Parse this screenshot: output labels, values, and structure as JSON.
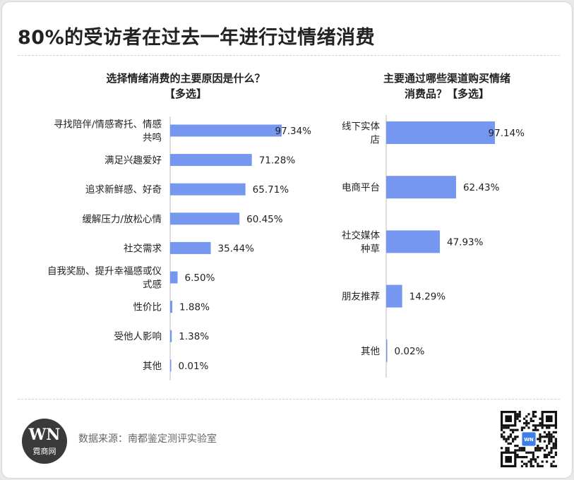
{
  "header": {
    "title": "80%的受访者在过去一年进行过情绪消费"
  },
  "chart_data": [
    {
      "type": "bar",
      "orientation": "horizontal",
      "title": "选择情绪消费的主要原因是什么？【多选】",
      "title_lines": [
        "选择情绪消费的主要原因是什么？",
        "【多选】"
      ],
      "categories": [
        "寻找陪伴/情感寄托、情感共鸣",
        "满足兴趣爱好",
        "追求新鲜感、好奇",
        "缓解压力/放松心情",
        "社交需求",
        "自我奖励、提升幸福感或仪式感",
        "性价比",
        "受他人影响",
        "其他"
      ],
      "category_lines": [
        [
          "寻找陪伴/情感寄托、情感",
          "共鸣"
        ],
        [
          "满足兴趣爱好"
        ],
        [
          "追求新鲜感、好奇"
        ],
        [
          "缓解压力/放松心情"
        ],
        [
          "社交需求"
        ],
        [
          "自我奖励、提升幸福感或仪",
          "式感"
        ],
        [
          "性价比"
        ],
        [
          "受他人影响"
        ],
        [
          "其他"
        ]
      ],
      "values": [
        97.34,
        71.28,
        65.71,
        60.45,
        35.44,
        6.5,
        1.88,
        1.38,
        0.01
      ],
      "value_labels": [
        "97.34%",
        "71.28%",
        "65.71%",
        "60.45%",
        "35.44%",
        "6.50%",
        "1.88%",
        "1.38%",
        "0.01%"
      ],
      "unit": "%",
      "xlim": [
        0,
        100
      ],
      "grid": false,
      "bar_color": "#7597f0"
    },
    {
      "type": "bar",
      "orientation": "horizontal",
      "title": "主要通过哪些渠道购买情绪消费品？【多选】",
      "title_lines": [
        "主要通过哪些渠道购买情绪",
        "消费品？【多选】"
      ],
      "categories": [
        "线下实体店",
        "电商平台",
        "社交媒体种草",
        "朋友推荐",
        "其他"
      ],
      "category_lines": [
        [
          "线下实体",
          "店"
        ],
        [
          "电商平台"
        ],
        [
          "社交媒体",
          "种草"
        ],
        [
          "朋友推荐"
        ],
        [
          "其他"
        ]
      ],
      "values": [
        97.14,
        62.43,
        47.93,
        14.29,
        0.02
      ],
      "value_labels": [
        "97.14%",
        "62.43%",
        "47.93%",
        "14.29%",
        "0.02%"
      ],
      "unit": "%",
      "xlim": [
        0,
        100
      ],
      "grid": false,
      "bar_color": "#7597f0"
    }
  ],
  "footer": {
    "logo_text": "WN",
    "logo_subtext": "霓商网",
    "source": "数据来源：南都鉴定测评实验室",
    "qr_icon": "qr-code-icon",
    "qr_center_text": "WN"
  }
}
